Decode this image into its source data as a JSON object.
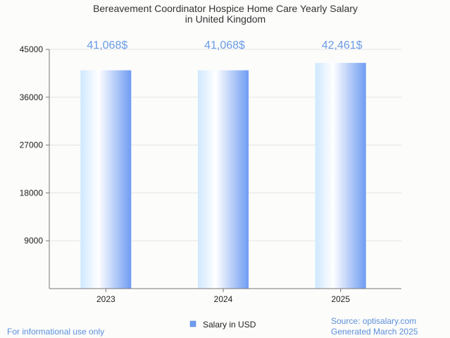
{
  "colors": {
    "bar_light": "#e6f4ff",
    "bar_dark": "#6f9cf2",
    "label": "#6a9be6",
    "grid": "#e3e3e3",
    "axis": "#777777"
  },
  "chart_data": {
    "type": "bar",
    "title_lines": [
      "Bereavement Coordinator Hospice Home Care Yearly Salary",
      "in United Kingdom"
    ],
    "categories": [
      "2023",
      "2024",
      "2025"
    ],
    "series": [
      {
        "name": "Salary in USD",
        "values": [
          41068,
          41068,
          42461
        ],
        "labels": [
          "41,068$",
          "41,068$",
          "42,461$"
        ]
      }
    ],
    "ylim": [
      0,
      45000
    ],
    "yticks": [
      9000,
      18000,
      27000,
      36000,
      45000
    ],
    "grid": true,
    "legend": "bottom-center",
    "xlabel": "",
    "ylabel": ""
  },
  "footer": {
    "note": "For informational use only",
    "source": "Source: optisalary.com",
    "generated": "Generated March 2025"
  }
}
